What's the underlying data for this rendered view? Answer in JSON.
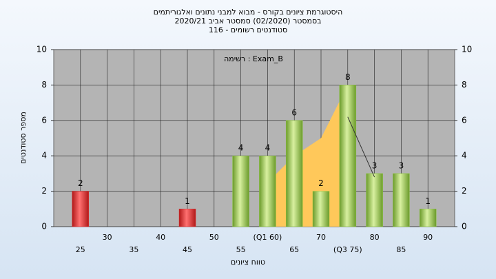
{
  "chart_data": {
    "type": "bar",
    "title": [
      "היסטוגרמת ציונים בקורס - מבוא למבני נתונים ואלגוריתמים",
      "בסמסטר  (02/2020)  סמסטר אביב 2020/21",
      "סטודנטים רשומים - 116"
    ],
    "annotation": "רשימה : Exam_B",
    "x_label": "טווח ציונים",
    "y_label": "מספר סטודנטים",
    "categories": [
      "25",
      "30",
      "35",
      "40",
      "45",
      "50",
      "55",
      "(Q1 60)",
      "65",
      "70",
      "(Q3 75)",
      "80",
      "85",
      "90"
    ],
    "values": [
      2,
      0,
      0,
      0,
      1,
      0,
      4,
      4,
      6,
      2,
      8,
      3,
      3,
      1
    ],
    "colors": [
      "#e03030",
      "#e03030",
      "#e03030",
      "#e03030",
      "#e03030",
      "#8cc63f",
      "#8cc63f",
      "#8cc63f",
      "#8cc63f",
      "#8cc63f",
      "#8cc63f",
      "#8cc63f",
      "#8cc63f",
      "#8cc63f"
    ],
    "area": {
      "color": "#ffc85a",
      "values": [
        null,
        null,
        null,
        null,
        null,
        null,
        null,
        2.5,
        4,
        5,
        8,
        null,
        null,
        null
      ]
    },
    "line": {
      "color": "#333333",
      "values": [
        null,
        null,
        null,
        null,
        null,
        null,
        null,
        null,
        null,
        null,
        6.2,
        2.8,
        null,
        null
      ]
    },
    "ylim": [
      0,
      10
    ],
    "yticks": [
      0,
      2,
      4,
      6,
      8,
      10
    ],
    "y2lim": [
      0,
      10
    ],
    "y2ticks": [
      0,
      2,
      4,
      6,
      8,
      10
    ],
    "grid": true
  }
}
